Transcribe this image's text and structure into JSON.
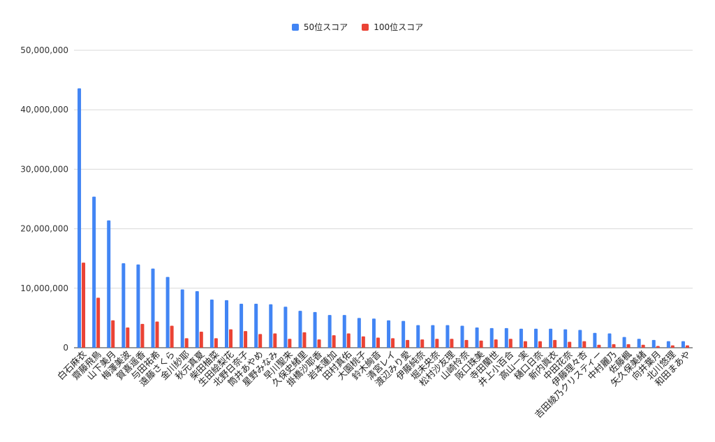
{
  "chart_data": {
    "type": "bar",
    "categories": [
      "白石麻衣",
      "齋藤飛鳥",
      "山下美月",
      "梅澤美波",
      "賀喜遥香",
      "与田祐希",
      "遠藤さくら",
      "金川紗耶",
      "秋元真夏",
      "柴田柚菜",
      "生田絵梨花",
      "北野日奈子",
      "筒井あやめ",
      "星野みなみ",
      "早川聖来",
      "久保史緒里",
      "掛橋沙耶香",
      "岩本蓮加",
      "田村真佑",
      "大園桃子",
      "鈴木絢音",
      "清宮レイ",
      "渡辺みり愛",
      "伊藤純奈",
      "堀未央奈",
      "松村沙友理",
      "山崎怜奈",
      "阪口珠美",
      "寺田蘭世",
      "井上小百合",
      "高山一実",
      "樋口日奈",
      "新内眞衣",
      "中田花奈",
      "伊藤理々杏",
      "吉田綾乃クリスティー",
      "中村麗乃",
      "佐藤楓",
      "矢久保美緒",
      "向井葉月",
      "北川悠理",
      "和田まあや"
    ],
    "series": [
      {
        "name": "50位スコア",
        "color": "#4285f4",
        "values": [
          43600000,
          25400000,
          21400000,
          14200000,
          14000000,
          13300000,
          11900000,
          9800000,
          9500000,
          8100000,
          8000000,
          7400000,
          7400000,
          7300000,
          6900000,
          6200000,
          6000000,
          5500000,
          5500000,
          5000000,
          4900000,
          4600000,
          4500000,
          3800000,
          3800000,
          3800000,
          3700000,
          3400000,
          3300000,
          3300000,
          3200000,
          3200000,
          3200000,
          3100000,
          3000000,
          2500000,
          2400000,
          1800000,
          1500000,
          1300000,
          1100000,
          1100000
        ]
      },
      {
        "name": "100位スコア",
        "color": "#ea4335",
        "values": [
          14300000,
          8400000,
          4600000,
          3400000,
          4000000,
          4400000,
          3700000,
          1600000,
          2700000,
          1600000,
          3100000,
          2800000,
          2300000,
          2400000,
          1500000,
          2600000,
          1400000,
          2100000,
          2400000,
          1900000,
          1700000,
          1600000,
          1300000,
          1400000,
          1500000,
          1500000,
          1300000,
          1200000,
          1400000,
          1500000,
          1100000,
          1100000,
          1300000,
          1000000,
          1100000,
          500000,
          600000,
          600000,
          500000,
          300000,
          400000,
          400000
        ]
      }
    ],
    "ylim": [
      0,
      50000000
    ],
    "yticks": [
      "0",
      "10,000,000",
      "20,000,000",
      "30,000,000",
      "40,000,000",
      "50,000,000"
    ],
    "grid": true,
    "legend_position": "top-center"
  }
}
